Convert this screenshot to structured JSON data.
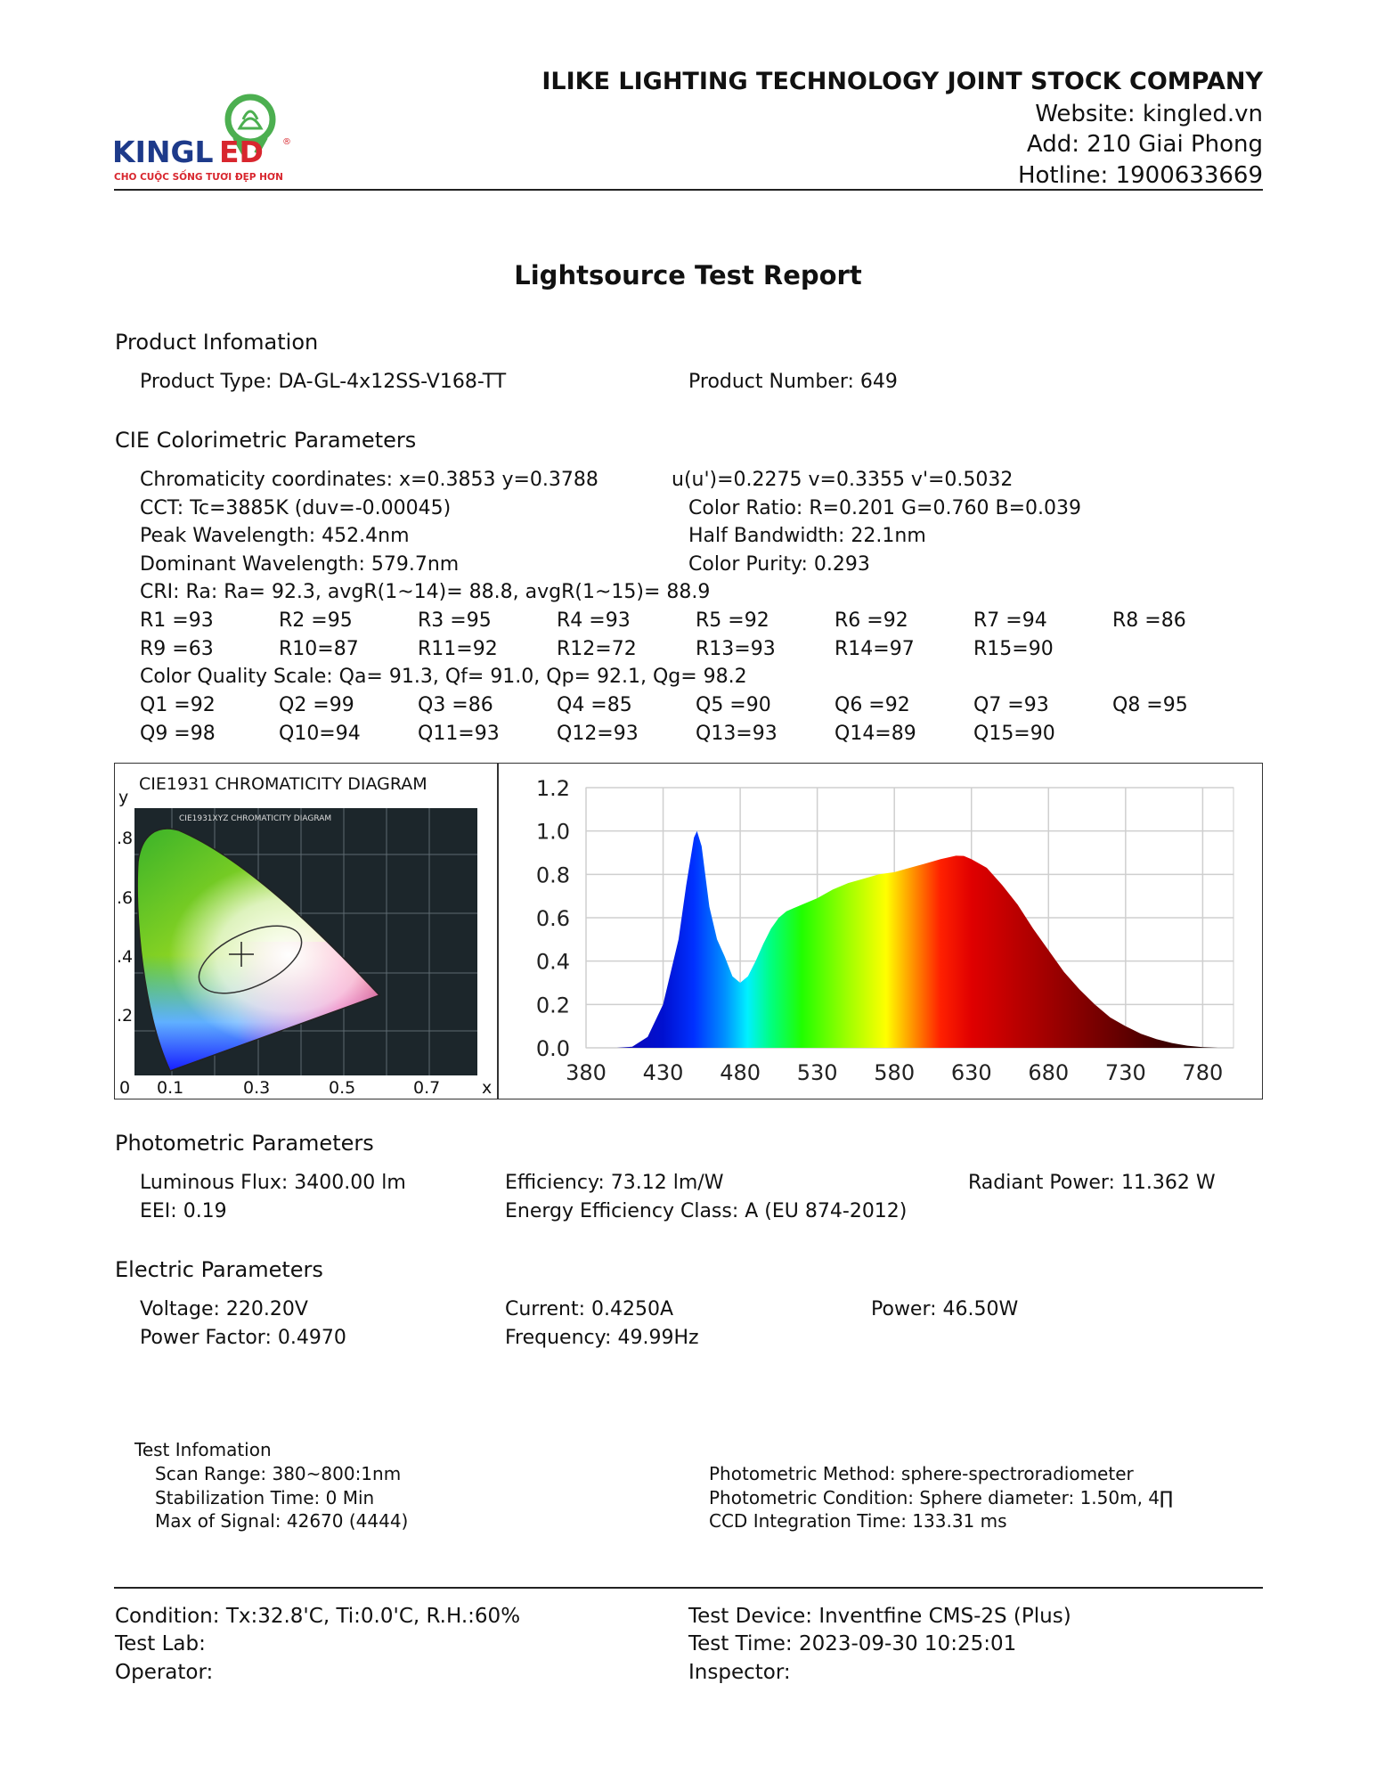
{
  "header": {
    "logo": {
      "brand": "KINGLED",
      "tagline": "CHO CUỘC SỐNG TƯƠI ĐẸP HƠN",
      "colors": {
        "navy": "#1d3a8a",
        "red": "#d8262e",
        "green": "#4caf50"
      }
    },
    "company": "ILIKE LIGHTING TECHNOLOGY JOINT STOCK COMPANY",
    "website": "Website: kingled.vn",
    "address": "Add: 210 Giai Phong",
    "hotline": "Hotline: 1900633669"
  },
  "title": "Lightsource Test Report",
  "product": {
    "heading": "Product Infomation",
    "type": "Product Type: DA-GL-4x12SS-V168-TT",
    "number": "Product Number: 649"
  },
  "cie": {
    "heading": "CIE Colorimetric Parameters",
    "chromaticity": "Chromaticity coordinates: x=0.3853 y=0.3788",
    "uv": "u(u')=0.2275 v=0.3355 v'=0.5032",
    "cct": "CCT: Tc=3885K (duv=-0.00045)",
    "color_ratio": "Color Ratio: R=0.201  G=0.760  B=0.039",
    "peak": "Peak Wavelength: 452.4nm",
    "half_bandwidth": "Half Bandwidth: 22.1nm",
    "dominant": "Dominant Wavelength: 579.7nm",
    "purity": "Color Purity: 0.293",
    "cri": "CRI: Ra: Ra= 92.3, avgR(1~14)= 88.8, avgR(1~15)= 88.9",
    "r_values": [
      [
        "R1 =93",
        "R2 =95",
        "R3 =95",
        "R4 =93",
        "R5 =92",
        "R6 =92",
        "R7 =94",
        "R8 =86"
      ],
      [
        "R9 =63",
        "R10=87",
        "R11=92",
        "R12=72",
        "R13=93",
        "R14=97",
        "R15=90"
      ]
    ],
    "cqs": "Color Quality Scale: Qa= 91.3, Qf= 91.0, Qp= 92.1, Qg= 98.2",
    "q_values": [
      [
        "Q1 =92",
        "Q2 =99",
        "Q3 =86",
        "Q4 =85",
        "Q5 =90",
        "Q6 =92",
        "Q7 =93",
        "Q8 =95"
      ],
      [
        "Q9 =98",
        "Q10=94",
        "Q11=93",
        "Q12=93",
        "Q13=93",
        "Q14=89",
        "Q15=90"
      ]
    ]
  },
  "chart_data": [
    {
      "type": "image",
      "title": "CIE1931 CHROMATICITY DIAGRAM",
      "inner_title": "CIE1931XYZ CHROMATICITY DIAGRAM",
      "xlabel": "x",
      "ylabel": "y",
      "x_ticks": [
        "0",
        "0.1",
        "0.3",
        "0.5",
        "0.7"
      ],
      "y_ticks": [
        ".8",
        ".6",
        ".4",
        ".2"
      ],
      "point": {
        "x": 0.3853,
        "y": 0.3788
      }
    },
    {
      "type": "area",
      "xlim": [
        380,
        800
      ],
      "ylim": [
        0,
        1.2
      ],
      "x_ticks": [
        "380",
        "430",
        "480",
        "530",
        "580",
        "630",
        "680",
        "730",
        "780"
      ],
      "y_ticks": [
        "0.0",
        "0.2",
        "0.4",
        "0.6",
        "0.8",
        "1.0",
        "1.2"
      ],
      "grid": true,
      "fill": "spectral colour by wavelength",
      "x": [
        380,
        400,
        410,
        420,
        430,
        440,
        445,
        450,
        452,
        455,
        460,
        465,
        470,
        475,
        480,
        485,
        490,
        495,
        500,
        505,
        510,
        520,
        530,
        540,
        550,
        560,
        570,
        580,
        590,
        600,
        610,
        620,
        625,
        630,
        640,
        650,
        660,
        670,
        680,
        690,
        700,
        710,
        720,
        730,
        740,
        750,
        760,
        770,
        780,
        790,
        800
      ],
      "y": [
        0,
        0,
        0.005,
        0.05,
        0.2,
        0.5,
        0.75,
        0.97,
        1.0,
        0.93,
        0.65,
        0.5,
        0.42,
        0.33,
        0.3,
        0.33,
        0.4,
        0.48,
        0.55,
        0.6,
        0.63,
        0.66,
        0.69,
        0.73,
        0.76,
        0.78,
        0.8,
        0.81,
        0.83,
        0.85,
        0.87,
        0.886,
        0.885,
        0.87,
        0.83,
        0.75,
        0.66,
        0.55,
        0.45,
        0.35,
        0.27,
        0.2,
        0.14,
        0.1,
        0.065,
        0.04,
        0.022,
        0.01,
        0.003,
        0,
        0
      ]
    }
  ],
  "photometric": {
    "heading": "Photometric Parameters",
    "flux": "Luminous Flux: 3400.00 lm",
    "efficiency": "Efficiency: 73.12 lm/W",
    "radiant": "Radiant Power: 11.362 W",
    "eei": "EEI:  0.19",
    "class": "Energy Efficiency Class: A (EU 874-2012)"
  },
  "electric": {
    "heading": "Electric Parameters",
    "voltage": "Voltage: 220.20V",
    "current": "Current: 0.4250A",
    "power": "Power: 46.50W",
    "pf": "Power Factor: 0.4970",
    "frequency": "Frequency: 49.99Hz"
  },
  "test_info": {
    "heading": "Test Infomation",
    "scan": "Scan Range: 380~800:1nm",
    "stabilization": "Stabilization Time: 0 Min",
    "max_signal": "Max of Signal: 42670 (4444)",
    "method": "Photometric Method: sphere-spectroradiometer",
    "condition": "Photometric Condition: Sphere diameter: 1.50m, 4∏",
    "ccd": "CCD Integration Time: 133.31 ms"
  },
  "footer": {
    "condition": "Condition: Tx:32.8'C, Ti:0.0'C, R.H.:60%",
    "device": "Test Device: Inventfine CMS-2S (Plus)",
    "lab": "Test Lab:",
    "time": "Test Time: 2023-09-30 10:25:01",
    "operator": "Operator:",
    "inspector": "Inspector:"
  }
}
